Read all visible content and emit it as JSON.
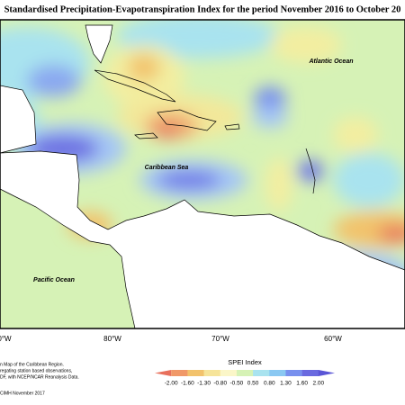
{
  "header": {
    "title": "Standardised Precipitation-Evapotranspiration Index for the period November 2016 to October 20"
  },
  "map": {
    "labels": [
      "Atlantic Ocean",
      "Caribbean Sea",
      "Pacific Ocean"
    ],
    "longitudes": [
      "0°W",
      "80°W",
      "70°W",
      "60°W"
    ]
  },
  "legend": {
    "title": "SPEI Index",
    "ticks": [
      "-2.00",
      "-1.60",
      "-1.30",
      "-0.80",
      "-0.50",
      "0.50",
      "0.80",
      "1.30",
      "1.60",
      "2.00"
    ]
  },
  "notes": {
    "lines": [
      "n Map of the Caribbean Region.",
      "regating station based observations,",
      "DF, with NCEP/NCAR Reanalysis Data."
    ],
    "credit": "CIMH November 2017"
  }
}
